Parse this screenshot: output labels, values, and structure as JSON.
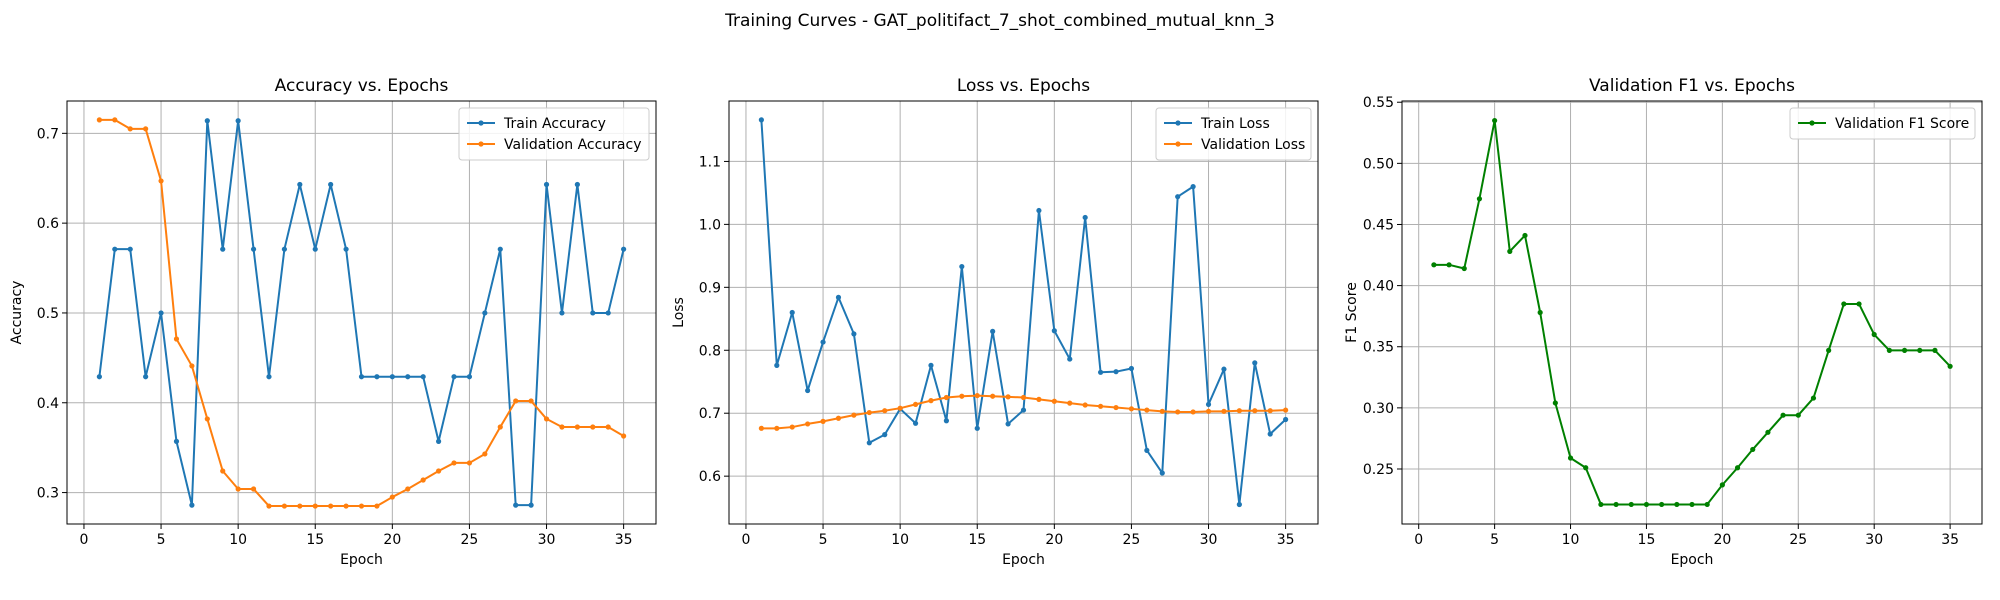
{
  "suptitle": "Training Curves - GAT_politifact_7_shot_combined_mutual_knn_3",
  "chart_data": [
    {
      "type": "line",
      "title": "Accuracy vs. Epochs",
      "xlabel": "Epoch",
      "ylabel": "Accuracy",
      "xlim": [
        -1.1,
        37.1
      ],
      "ylim": [
        0.265,
        0.736
      ],
      "xticks": [
        0,
        5,
        10,
        15,
        20,
        25,
        30,
        35
      ],
      "yticks": [
        0.3,
        0.4,
        0.5,
        0.6,
        0.7
      ],
      "ytick_format": 1,
      "grid": true,
      "legend_position": "top-right",
      "x": [
        1,
        2,
        3,
        4,
        5,
        6,
        7,
        8,
        9,
        10,
        11,
        12,
        13,
        14,
        15,
        16,
        17,
        18,
        19,
        20,
        21,
        22,
        23,
        24,
        25,
        26,
        27,
        28,
        29,
        30,
        31,
        32,
        33,
        34,
        35
      ],
      "series": [
        {
          "name": "Train Accuracy",
          "color": "#1f77b4",
          "values": [
            0.429,
            0.571,
            0.571,
            0.429,
            0.5,
            0.357,
            0.286,
            0.714,
            0.571,
            0.714,
            0.571,
            0.429,
            0.571,
            0.643,
            0.571,
            0.643,
            0.571,
            0.429,
            0.429,
            0.429,
            0.429,
            0.429,
            0.357,
            0.429,
            0.429,
            0.5,
            0.571,
            0.286,
            0.286,
            0.643,
            0.5,
            0.643,
            0.5,
            0.5,
            0.571
          ]
        },
        {
          "name": "Validation Accuracy",
          "color": "#ff7f0e",
          "values": [
            0.715,
            0.715,
            0.705,
            0.705,
            0.647,
            0.471,
            0.441,
            0.382,
            0.324,
            0.304,
            0.304,
            0.285,
            0.285,
            0.285,
            0.285,
            0.285,
            0.285,
            0.285,
            0.285,
            0.295,
            0.304,
            0.314,
            0.324,
            0.333,
            0.333,
            0.343,
            0.373,
            0.402,
            0.402,
            0.382,
            0.373,
            0.373,
            0.373,
            0.373,
            0.363
          ]
        }
      ]
    },
    {
      "type": "line",
      "title": "Loss vs. Epochs",
      "xlabel": "Epoch",
      "ylabel": "Loss",
      "xlim": [
        -1.1,
        37.1
      ],
      "ylim": [
        0.524,
        1.196
      ],
      "xticks": [
        0,
        5,
        10,
        15,
        20,
        25,
        30,
        35
      ],
      "yticks": [
        0.6,
        0.7,
        0.8,
        0.9,
        1.0,
        1.1
      ],
      "ytick_format": 1,
      "grid": true,
      "legend_position": "top-right",
      "x": [
        1,
        2,
        3,
        4,
        5,
        6,
        7,
        8,
        9,
        10,
        11,
        12,
        13,
        14,
        15,
        16,
        17,
        18,
        19,
        20,
        21,
        22,
        23,
        24,
        25,
        26,
        27,
        28,
        29,
        30,
        31,
        32,
        33,
        34,
        35
      ],
      "series": [
        {
          "name": "Train Loss",
          "color": "#1f77b4",
          "values": [
            1.166,
            0.776,
            0.86,
            0.736,
            0.813,
            0.884,
            0.826,
            0.653,
            0.666,
            0.707,
            0.684,
            0.776,
            0.688,
            0.933,
            0.676,
            0.83,
            0.683,
            0.705,
            1.022,
            0.831,
            0.786,
            1.011,
            0.765,
            0.766,
            0.771,
            0.641,
            0.605,
            1.044,
            1.06,
            0.714,
            0.77,
            0.555,
            0.78,
            0.667,
            0.69
          ]
        },
        {
          "name": "Validation Loss",
          "color": "#ff7f0e",
          "values": [
            0.676,
            0.676,
            0.678,
            0.683,
            0.687,
            0.692,
            0.697,
            0.701,
            0.704,
            0.708,
            0.714,
            0.72,
            0.725,
            0.727,
            0.728,
            0.727,
            0.726,
            0.725,
            0.722,
            0.719,
            0.716,
            0.713,
            0.711,
            0.709,
            0.707,
            0.705,
            0.703,
            0.702,
            0.702,
            0.703,
            0.703,
            0.704,
            0.704,
            0.704,
            0.705
          ]
        }
      ]
    },
    {
      "type": "line",
      "title": "Validation F1 vs. Epochs",
      "xlabel": "Epoch",
      "ylabel": "F1 Score",
      "xlim": [
        -1.1,
        37.1
      ],
      "ylim": [
        0.205,
        0.551
      ],
      "xticks": [
        0,
        5,
        10,
        15,
        20,
        25,
        30,
        35
      ],
      "yticks": [
        0.25,
        0.3,
        0.35,
        0.4,
        0.45,
        0.5,
        0.55
      ],
      "ytick_format": 2,
      "grid": true,
      "legend_position": "top-right",
      "x": [
        1,
        2,
        3,
        4,
        5,
        6,
        7,
        8,
        9,
        10,
        11,
        12,
        13,
        14,
        15,
        16,
        17,
        18,
        19,
        20,
        21,
        22,
        23,
        24,
        25,
        26,
        27,
        28,
        29,
        30,
        31,
        32,
        33,
        34,
        35
      ],
      "series": [
        {
          "name": "Validation F1 Score",
          "color": "#008000",
          "values": [
            0.417,
            0.417,
            0.414,
            0.471,
            0.535,
            0.428,
            0.441,
            0.378,
            0.304,
            0.259,
            0.251,
            0.221,
            0.221,
            0.221,
            0.221,
            0.221,
            0.221,
            0.221,
            0.221,
            0.237,
            0.251,
            0.266,
            0.28,
            0.294,
            0.294,
            0.308,
            0.347,
            0.385,
            0.385,
            0.36,
            0.347,
            0.347,
            0.347,
            0.347,
            0.334
          ]
        }
      ]
    }
  ]
}
